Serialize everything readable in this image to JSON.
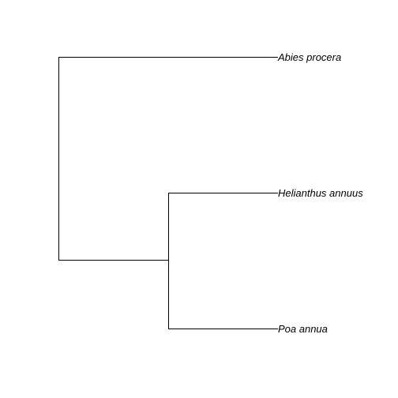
{
  "tree": {
    "type": "cladogram",
    "orientation": "rightward",
    "tips": [
      {
        "id": "tip-abies",
        "label": "Abies procera"
      },
      {
        "id": "tip-helianthus",
        "label": "Helianthus annuus"
      },
      {
        "id": "tip-poa",
        "label": "Poa annua"
      }
    ],
    "topology": "(Abies procera,(Helianthus annuus,Poa annua));",
    "clades": [
      {
        "id": "root",
        "children": [
          "tip-abies",
          "clade-1"
        ]
      },
      {
        "id": "clade-1",
        "children": [
          "tip-helianthus",
          "tip-poa"
        ]
      }
    ],
    "branch_color": "#000000",
    "label_color": "#000000"
  }
}
